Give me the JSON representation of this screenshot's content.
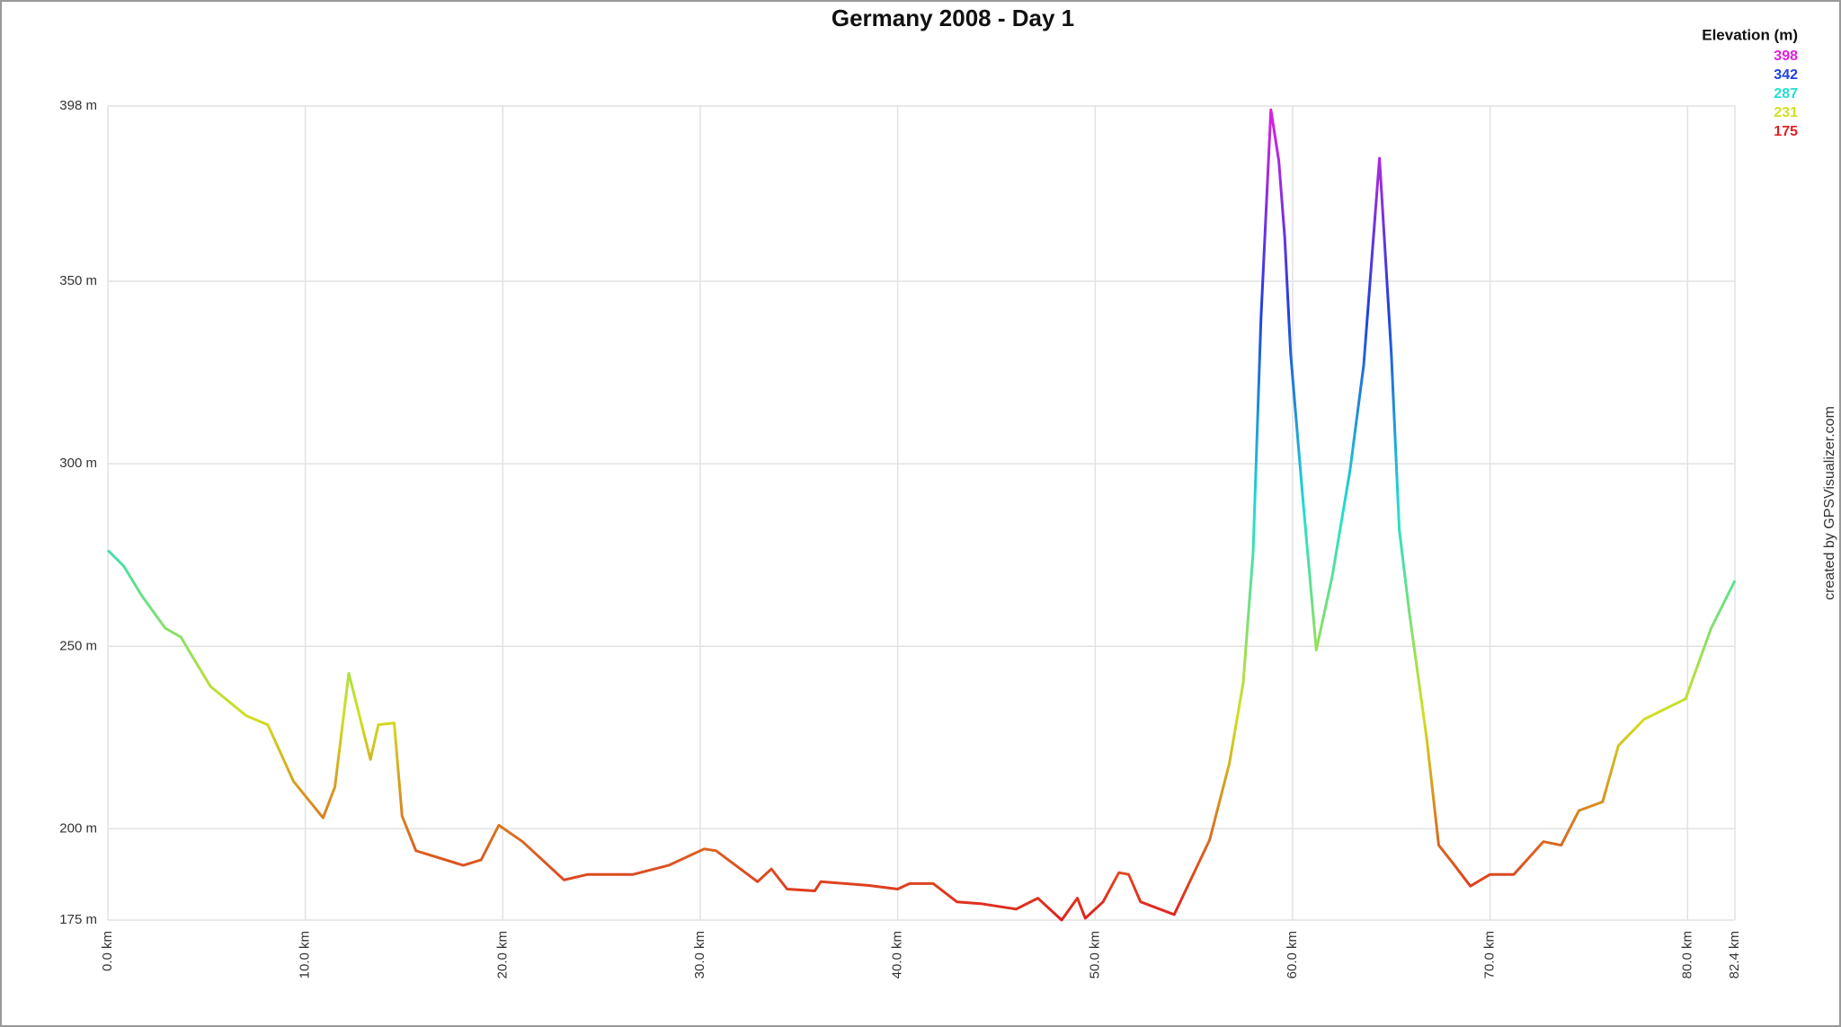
{
  "chart_data": {
    "type": "line",
    "title": "Germany 2008 - Day 1",
    "legend": {
      "title": "Elevation (m)",
      "entries": [
        {
          "label": "398",
          "value": 398,
          "color": "#e020e0"
        },
        {
          "label": "342",
          "value": 342,
          "color": "#2040e0"
        },
        {
          "label": "287",
          "value": 287,
          "color": "#20e0d0"
        },
        {
          "label": "231",
          "value": 231,
          "color": "#d0e020"
        },
        {
          "label": "175",
          "value": 175,
          "color": "#e02020"
        }
      ]
    },
    "credit": "created by GPSVisualizer.com",
    "x": [
      0,
      0.8,
      1.7,
      2.9,
      3.7,
      4.3,
      5.2,
      7.0,
      8.1,
      9.4,
      10.9,
      11.5,
      12.2,
      13.3,
      13.7,
      14.5,
      14.9,
      15.6,
      18.0,
      18.9,
      19.8,
      21.0,
      23.1,
      24.3,
      26.6,
      28.4,
      30.2,
      30.8,
      32.9,
      33.6,
      34.4,
      35.8,
      36.1,
      38.5,
      40.0,
      40.6,
      41.8,
      43.0,
      44.2,
      46.0,
      47.1,
      48.3,
      49.1,
      49.5,
      50.4,
      51.2,
      51.7,
      52.3,
      54.0,
      55.8,
      56.8,
      57.5,
      58.0,
      58.4,
      58.9,
      59.3,
      59.6,
      59.9,
      60.5,
      61.2,
      62.0,
      62.9,
      63.6,
      64.4,
      65.0,
      65.4,
      65.9,
      66.8,
      67.4,
      68.1,
      69.0,
      70.0,
      71.2,
      72.7,
      73.6,
      74.5,
      75.7,
      76.5,
      77.8,
      79.9,
      81.2,
      82.4
    ],
    "values": [
      276.3,
      272,
      264,
      255,
      252.5,
      247,
      239,
      231,
      228.5,
      213,
      203,
      211.5,
      242.6,
      219,
      228.5,
      229,
      203.5,
      194,
      190,
      191.5,
      201,
      196.5,
      186,
      187.5,
      187.5,
      190,
      194.5,
      194,
      185.5,
      189,
      183.5,
      183,
      185.5,
      184.5,
      183.5,
      185,
      185,
      180,
      179.5,
      178,
      181,
      175,
      181,
      175.5,
      180,
      188,
      187.5,
      180,
      176.5,
      197,
      218,
      240,
      275.6,
      340,
      397,
      383,
      362,
      330,
      291.7,
      249,
      269,
      298,
      327,
      383.7,
      330,
      282,
      259.6,
      224.4,
      195.5,
      190.7,
      184.3,
      187.5,
      187.5,
      196.5,
      195.5,
      205,
      207.4,
      222.8,
      230,
      235.6,
      255,
      268
    ],
    "xlim": [
      0,
      82.4
    ],
    "xticks": [
      {
        "value": 0,
        "label": "0.0 km"
      },
      {
        "value": 10,
        "label": "10.0 km"
      },
      {
        "value": 20,
        "label": "20.0 km"
      },
      {
        "value": 30,
        "label": "30.0 km"
      },
      {
        "value": 40,
        "label": "40.0 km"
      },
      {
        "value": 50,
        "label": "50.0 km"
      },
      {
        "value": 60,
        "label": "60.0 km"
      },
      {
        "value": 70,
        "label": "70.0 km"
      },
      {
        "value": 80,
        "label": "80.0 km"
      },
      {
        "value": 82.4,
        "label": "82.4 km"
      }
    ],
    "ylim": [
      175,
      398
    ],
    "yticks": [
      {
        "value": 175,
        "label": "175 m"
      },
      {
        "value": 200,
        "label": "200 m"
      },
      {
        "value": 250,
        "label": "250 m"
      },
      {
        "value": 300,
        "label": "300 m"
      },
      {
        "value": 350,
        "label": "350 m"
      },
      {
        "value": 398,
        "label": "398 m"
      }
    ],
    "grid": true
  }
}
